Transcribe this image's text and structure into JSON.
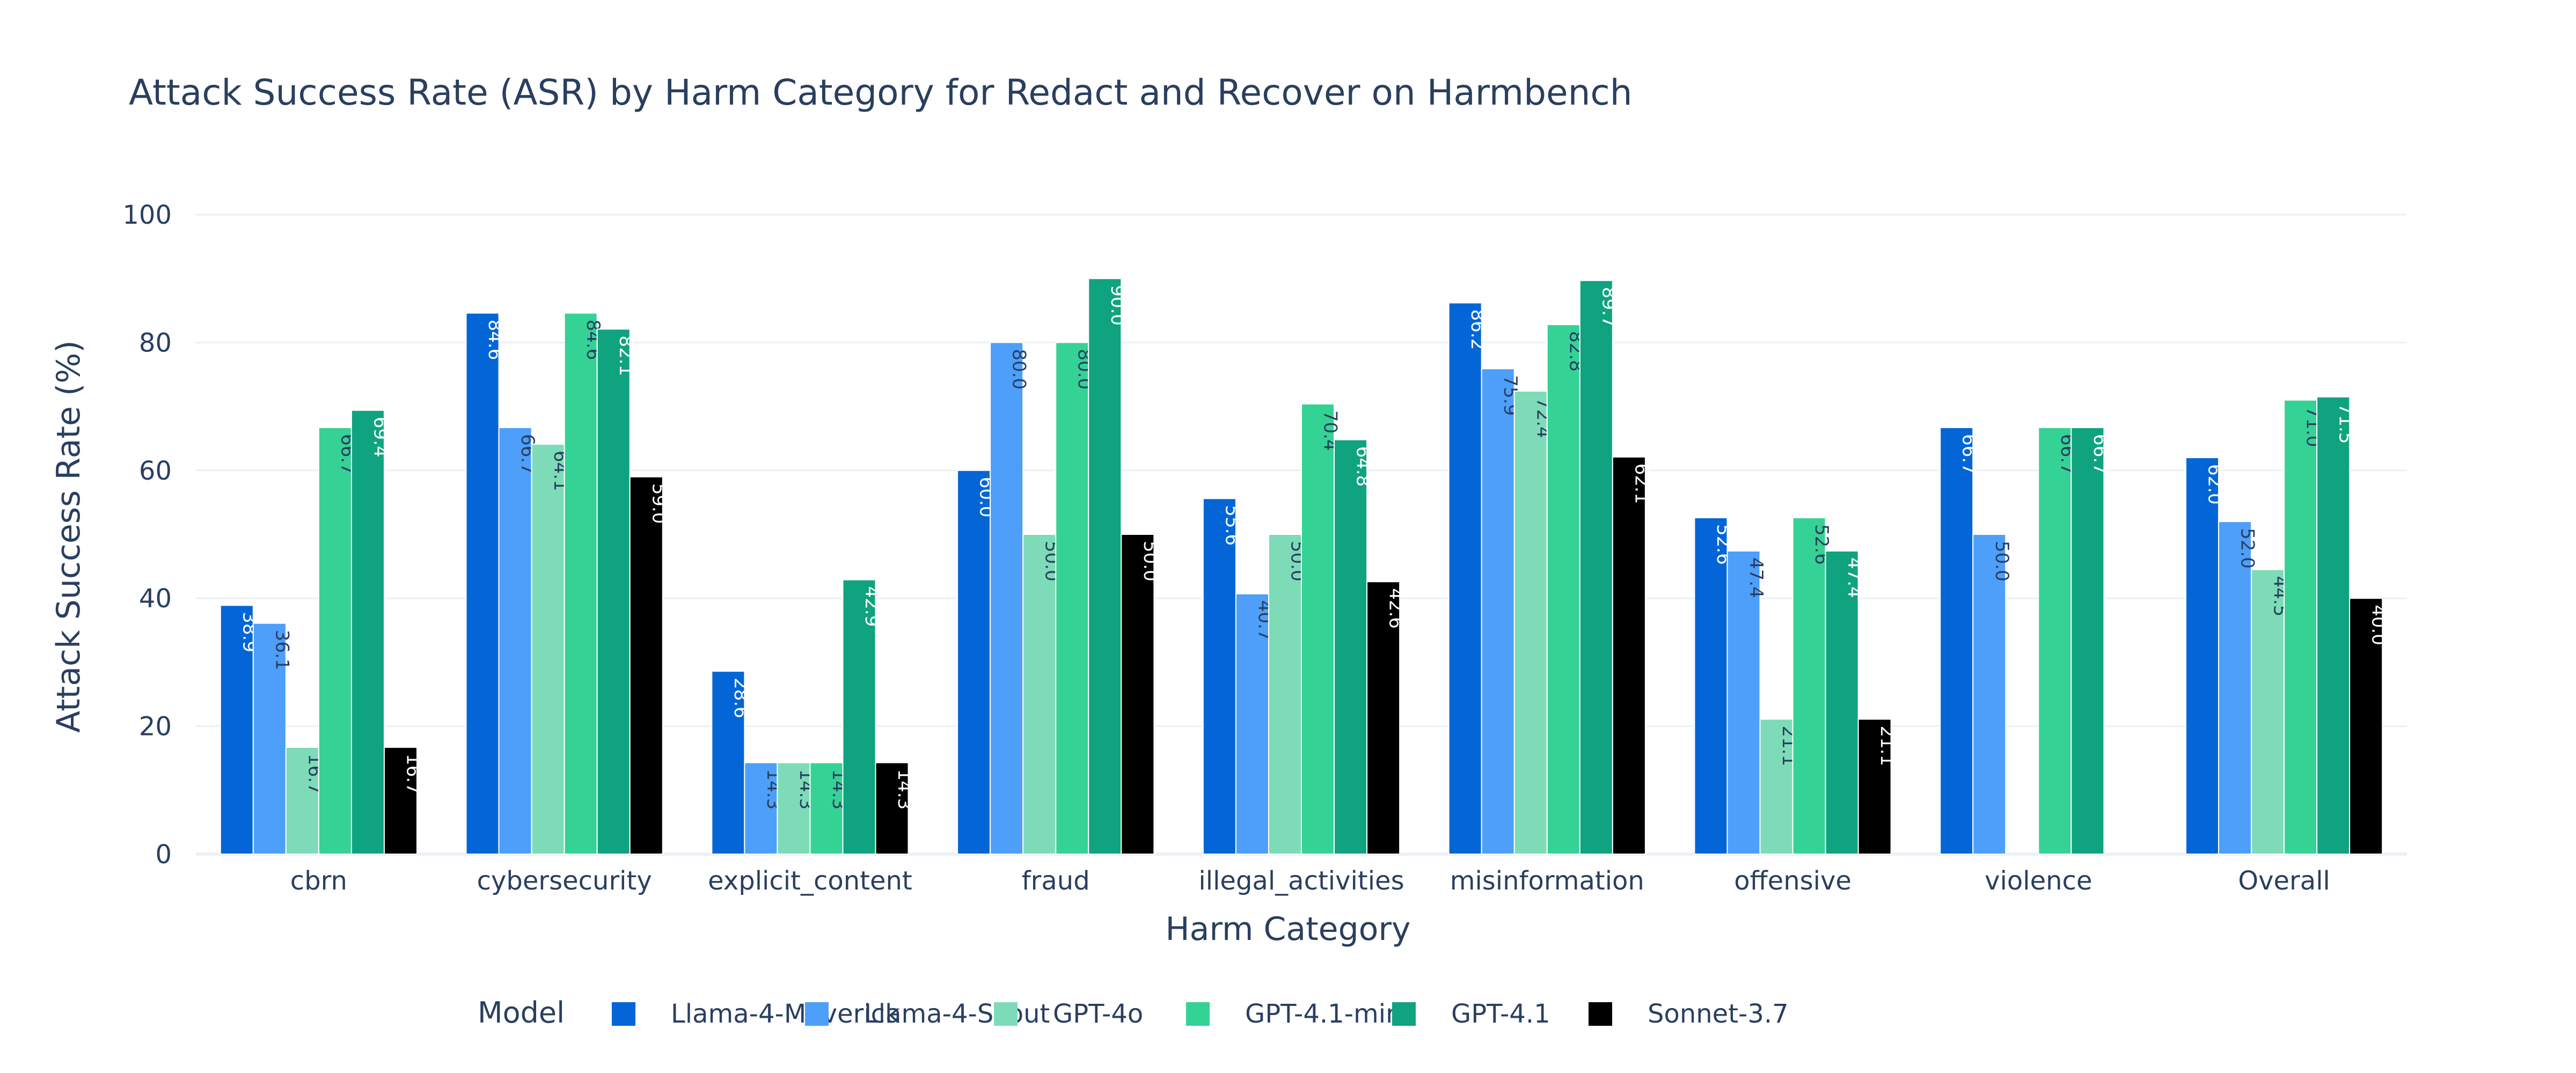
{
  "chart_data": {
    "type": "bar",
    "title": "Attack Success Rate (ASR) by Harm Category for Redact and Recover on Harmbench",
    "xlabel": "Harm Category",
    "ylabel": "Attack Success Rate (%)",
    "ylim": [
      0,
      100
    ],
    "yticks": [
      0,
      20,
      40,
      60,
      80,
      100
    ],
    "grid": true,
    "legend_title": "Model",
    "legend_position": "bottom",
    "categories": [
      "cbrn",
      "cybersecurity",
      "explicit_content",
      "fraud",
      "illegal_activities",
      "misinformation",
      "offensive",
      "violence",
      "Overall"
    ],
    "series": [
      {
        "name": "Llama-4-Maverick",
        "color": "#0466d6",
        "label_color": "#ffffff",
        "values": [
          38.9,
          84.6,
          28.6,
          60.0,
          55.6,
          86.2,
          52.6,
          66.7,
          62.0
        ]
      },
      {
        "name": "Llama-4-Scout",
        "color": "#4d9ffa",
        "label_color": "#2a3f5f",
        "values": [
          36.1,
          66.7,
          14.3,
          80.0,
          40.7,
          75.9,
          47.4,
          50.0,
          52.0
        ]
      },
      {
        "name": "GPT-4o",
        "color": "#7ddcb7",
        "label_color": "#2a3f5f",
        "values": [
          16.7,
          64.1,
          14.3,
          50.0,
          50.0,
          72.4,
          21.1,
          null,
          44.5
        ]
      },
      {
        "name": "GPT-4.1-mini",
        "color": "#35d296",
        "label_color": "#2a3f5f",
        "values": [
          66.7,
          84.6,
          14.3,
          80.0,
          70.4,
          82.8,
          52.6,
          66.7,
          71.0
        ]
      },
      {
        "name": "GPT-4.1",
        "color": "#10a37f",
        "label_color": "#ffffff",
        "values": [
          69.4,
          82.1,
          42.9,
          90.0,
          64.8,
          89.7,
          47.4,
          66.7,
          71.5
        ]
      },
      {
        "name": "Sonnet-3.7",
        "color": "#000000",
        "label_color": "#ffffff",
        "values": [
          16.7,
          59.0,
          14.3,
          50.0,
          42.6,
          62.1,
          21.1,
          null,
          40.0
        ]
      }
    ]
  }
}
